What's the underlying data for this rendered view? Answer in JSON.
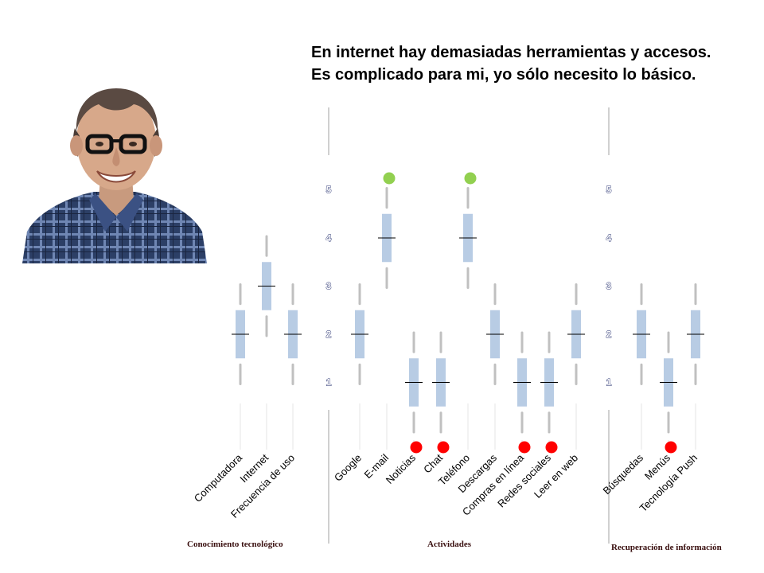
{
  "quote": {
    "line1": "En internet hay demasiadas herramientas y accesos.",
    "line2": "Es complicado para mi,  yo sólo necesito lo básico."
  },
  "portrait": {
    "icon": "person-portrait-icon"
  },
  "colors": {
    "box": "#b8cce4",
    "whisker": "#c0c0c0",
    "median": "#000000",
    "outlier_high": "#92d050",
    "outlier_low": "#ff0000",
    "divider": "#a0a0a0"
  },
  "chart_data": [
    {
      "type": "box",
      "group_label": "Conocimiento tecnológico",
      "ylim": [
        0,
        5
      ],
      "y_ticks": [],
      "items": [
        {
          "label": "Computadora",
          "min": 1,
          "q1": 1.5,
          "median": 2,
          "q3": 2.5,
          "max": 3,
          "outliers": []
        },
        {
          "label": "Internet",
          "min": 2,
          "q1": 2.5,
          "median": 3,
          "q3": 3.5,
          "max": 4,
          "outliers": []
        },
        {
          "label": "Frecuencia de uso",
          "min": 1,
          "q1": 1.5,
          "median": 2,
          "q3": 2.5,
          "max": 3,
          "outliers": []
        }
      ]
    },
    {
      "type": "box",
      "group_label": "Actividades",
      "ylim": [
        0,
        5
      ],
      "y_ticks": [
        "1",
        "2",
        "3",
        "4",
        "5"
      ],
      "items": [
        {
          "label": "Google",
          "min": 1,
          "q1": 1.5,
          "median": 2,
          "q3": 2.5,
          "max": 3,
          "outliers": []
        },
        {
          "label": "E-mail",
          "min": 3,
          "q1": 3.5,
          "median": 4,
          "q3": 4.5,
          "max": 5,
          "outliers": [
            5.5
          ]
        },
        {
          "label": "Noticias",
          "min": 0,
          "q1": 0.5,
          "median": 1,
          "q3": 1.5,
          "max": 2,
          "outliers": [
            -0.5
          ]
        },
        {
          "label": "Chat",
          "min": 0,
          "q1": 0.5,
          "median": 1,
          "q3": 1.5,
          "max": 2,
          "outliers": [
            -0.5
          ]
        },
        {
          "label": "Teléfono",
          "min": 3,
          "q1": 3.5,
          "median": 4,
          "q3": 4.5,
          "max": 5,
          "outliers": [
            5.5
          ]
        },
        {
          "label": "Descargas",
          "min": 1,
          "q1": 1.5,
          "median": 2,
          "q3": 2.5,
          "max": 3,
          "outliers": []
        },
        {
          "label": "Compras en línea",
          "min": 0,
          "q1": 0.5,
          "median": 1,
          "q3": 1.5,
          "max": 2,
          "outliers": [
            -0.5
          ]
        },
        {
          "label": "Redes sociales",
          "min": 0,
          "q1": 0.5,
          "median": 1,
          "q3": 1.5,
          "max": 2,
          "outliers": [
            -0.5
          ]
        },
        {
          "label": "Leer en web",
          "min": 1,
          "q1": 1.5,
          "median": 2,
          "q3": 2.5,
          "max": 3,
          "outliers": []
        }
      ]
    },
    {
      "type": "box",
      "group_label": "Recuperación de información",
      "ylim": [
        0,
        5
      ],
      "y_ticks": [
        "1",
        "2",
        "3",
        "4",
        "5"
      ],
      "items": [
        {
          "label": "Búsquedas",
          "min": 1,
          "q1": 1.5,
          "median": 2,
          "q3": 2.5,
          "max": 3,
          "outliers": []
        },
        {
          "label": "Menús",
          "min": 0,
          "q1": 0.5,
          "median": 1,
          "q3": 1.5,
          "max": 2,
          "outliers": [
            -0.5
          ]
        },
        {
          "label": "Tecnología Push",
          "min": 1,
          "q1": 1.5,
          "median": 2,
          "q3": 2.5,
          "max": 3,
          "outliers": []
        }
      ]
    }
  ]
}
